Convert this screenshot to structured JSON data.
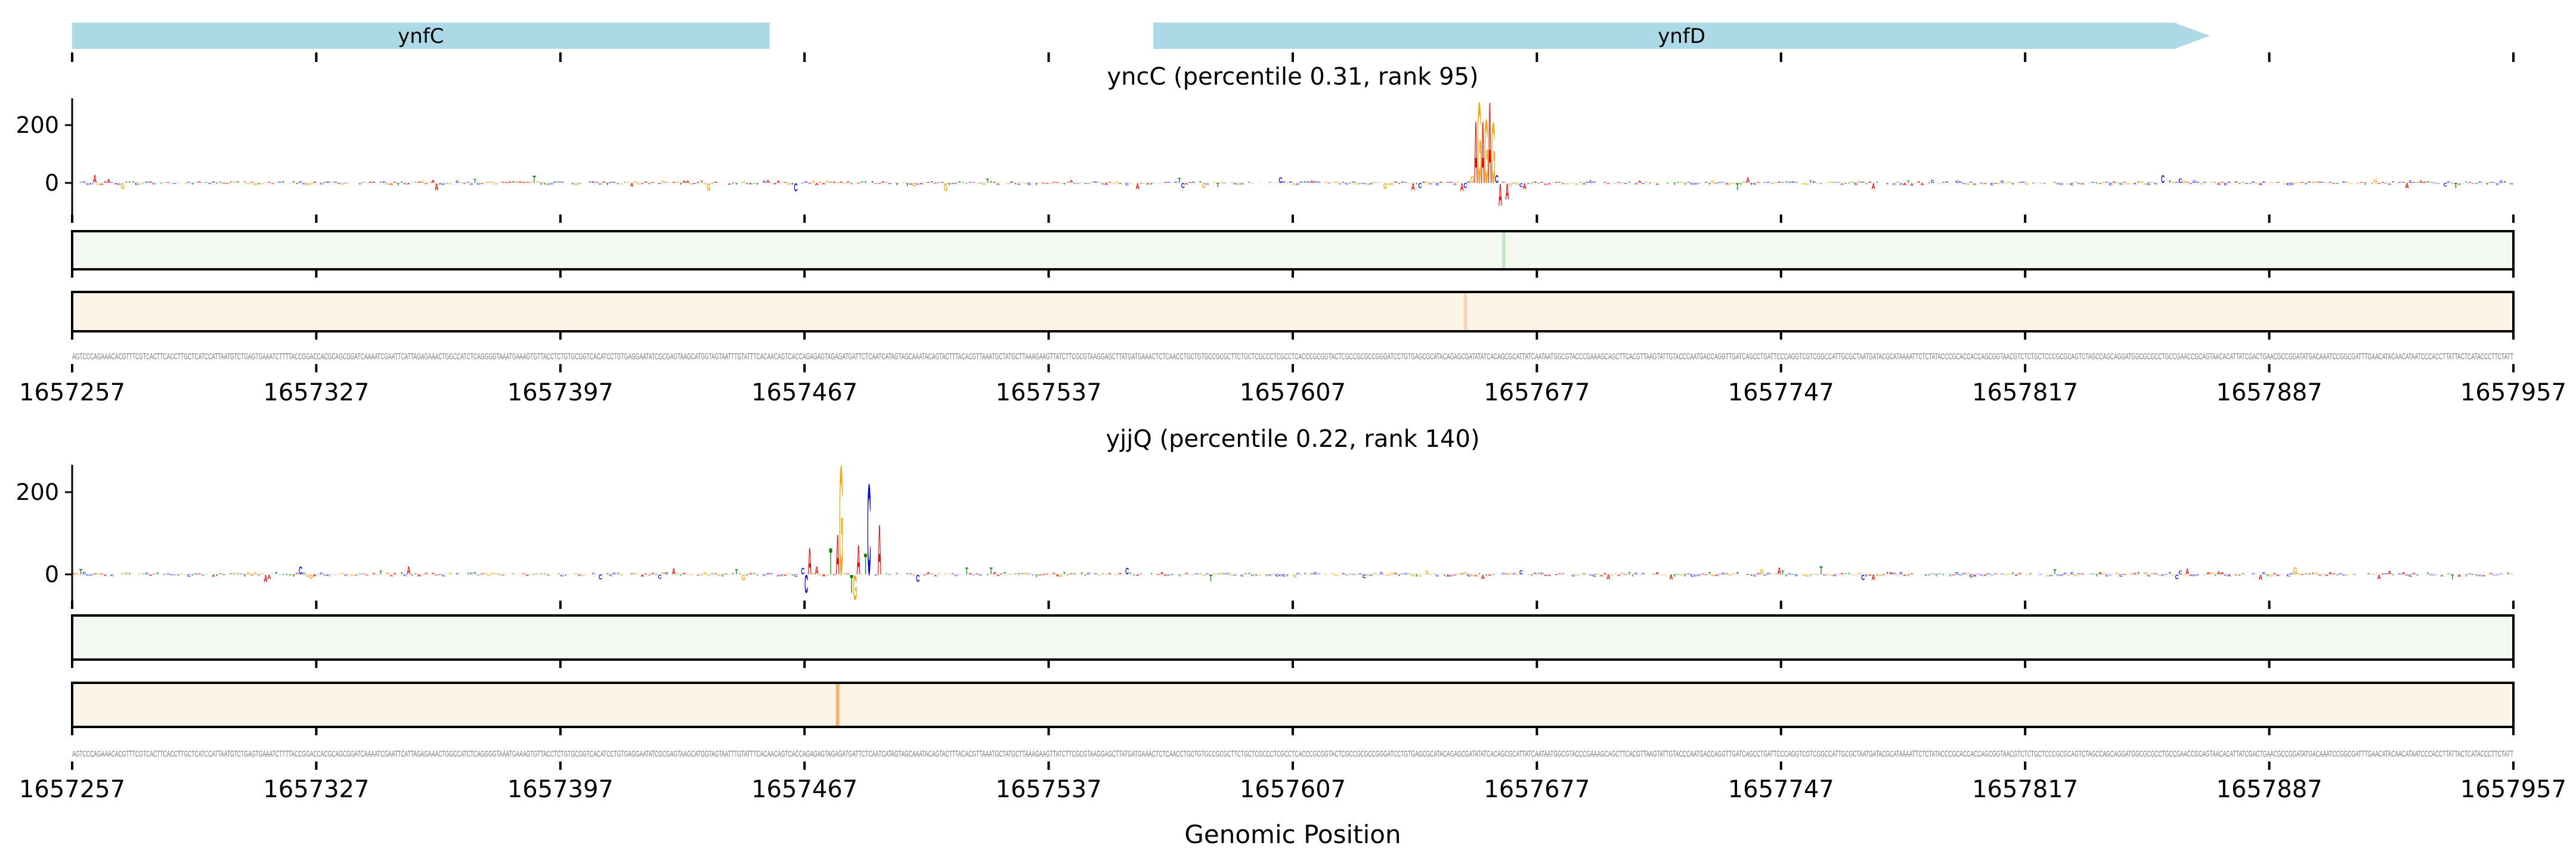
{
  "genes": [
    {
      "name": "ynfC",
      "start": 1657257,
      "end": 1657457,
      "arrow": false
    },
    {
      "name": "ynfD",
      "start": 1657567,
      "end": 1657870,
      "arrow": true
    }
  ],
  "colors": {
    "gene": "#add8e6",
    "A": "#ff0000",
    "C": "#0000ff",
    "G": "#ffa500",
    "T": "#008000",
    "green_track": "#f3f9f0",
    "green_mark": "#c6e5bf",
    "orange_track": "#fdf3e7",
    "orange_mark": "#f8d6b3",
    "orange_mark_strong": "#f4b36a"
  },
  "x_tick_labels": [
    "1657257",
    "1657327",
    "1657397",
    "1657467",
    "1657537",
    "1657607",
    "1657677",
    "1657747",
    "1657817",
    "1657887",
    "1657957"
  ],
  "xlabel": "Genomic Position",
  "sequence": "AGTCCCAGAAACACGTTTCGTCACTTCACCTTGCTCATCCATTAATGTCTGAGTGAAATCTTTTACCGGACCACGCAGCGGATCAAAATCGAATTCATTAGAGAAACTGGCCATCTCAGGGGTAAATGAAAGTGTTACCTCTGTGCGGTCACATCCTGTGAGGAATATCGCGAGTAAGCATGGTAGTAATTTGTATTTCACAACAGTCACCAGAGAGTAGAGATGATTCTCAATCATAGTAGCAAATACAGTACTTTACACGTTAAATGCTATGCTTAAAGAAGTTATCTTCGCGTAAGGAGCTTATGATGAAACTCTCAACCTGCTGTGCCGCGCTTCTGCTCGCCCTCGCCTCACCCGCGGTACTCGCCGCGCCGGGATCCTGTGAGCGCATACAGAGCGATATATCACAGCGCATTATCAATAATGGCGTACCCGAAAGCAGCTTCACGTTAAGTATTGTACCCAATGACCAGGTTGATCAGCCTGATTCCCAGGTCGTCGGCCATTGCGCTAATGATACGCATAAAATTCTCTATACCCGCACCACCAGCGGTAACGTCTCTGCTCCCGCGCAGTCTAGCCAGCAGGATGGCGCGCCTGCCGAACCGCAGTAACACATTATCGACTGAACGCCGGATATGACAAATCCGGCGATTTGAACATACAACATAATCCCACCTTATTACTCATACCCTTCTATT",
  "chart_data": [
    {
      "type": "sequence-logo",
      "title": "yncC (percentile 0.31, rank 95)",
      "xlim": [
        1657257,
        1657957
      ],
      "ylim": [
        -90,
        320
      ],
      "yticks": [
        "200",
        "0"
      ],
      "ytick_values": [
        200,
        0
      ],
      "peaks": [
        {
          "pos": 1657658,
          "base": "G",
          "value": 25
        },
        {
          "pos": 1657659,
          "base": "A",
          "value": 220
        },
        {
          "pos": 1657660,
          "base": "G",
          "value": 290
        },
        {
          "pos": 1657661,
          "base": "A",
          "value": 220
        },
        {
          "pos": 1657662,
          "base": "G",
          "value": 228
        },
        {
          "pos": 1657663,
          "base": "A",
          "value": 290
        },
        {
          "pos": 1657664,
          "base": "G",
          "value": 217
        },
        {
          "pos": 1657665,
          "base": "C",
          "value": 28
        },
        {
          "pos": 1657666,
          "base": "A",
          "value": -79
        },
        {
          "pos": 1657668,
          "base": "A",
          "value": -58
        },
        {
          "pos": 1657641,
          "base": "A",
          "value": -25
        },
        {
          "pos": 1657643,
          "base": "C",
          "value": -18
        },
        {
          "pos": 1657655,
          "base": "A",
          "value": -28
        },
        {
          "pos": 1657656,
          "base": "C",
          "value": -18
        },
        {
          "pos": 1657673,
          "base": "A",
          "value": -22
        },
        {
          "pos": 1657672,
          "base": "C",
          "value": -14
        }
      ],
      "green_track_highlights": [
        {
          "pos": 1657667,
          "strength": 1
        }
      ],
      "orange_track_highlights": [
        {
          "pos": 1657656,
          "strength": 1
        }
      ]
    },
    {
      "type": "sequence-logo",
      "title": "yjjQ (percentile 0.22, rank 140)",
      "xlim": [
        1657257,
        1657957
      ],
      "ylim": [
        -80,
        290
      ],
      "yticks": [
        "200",
        "0"
      ],
      "ytick_values": [
        200,
        0
      ],
      "peaks": [
        {
          "pos": 1657466,
          "base": "C",
          "value": 16
        },
        {
          "pos": 1657467,
          "base": "C",
          "value": -45
        },
        {
          "pos": 1657468,
          "base": "A",
          "value": 67
        },
        {
          "pos": 1657470,
          "base": "A",
          "value": 20
        },
        {
          "pos": 1657474,
          "base": "T",
          "value": 66
        },
        {
          "pos": 1657476,
          "base": "A",
          "value": 100
        },
        {
          "pos": 1657477,
          "base": "G",
          "value": 274
        },
        {
          "pos": 1657480,
          "base": "T",
          "value": -45
        },
        {
          "pos": 1657481,
          "base": "G",
          "value": -62
        },
        {
          "pos": 1657482,
          "base": "A",
          "value": 74
        },
        {
          "pos": 1657484,
          "base": "T",
          "value": 52
        },
        {
          "pos": 1657485,
          "base": "C",
          "value": 228
        },
        {
          "pos": 1657488,
          "base": "A",
          "value": 126
        },
        {
          "pos": 1657499,
          "base": "C",
          "value": -18
        }
      ],
      "green_track_highlights": [],
      "orange_track_highlights": [
        {
          "pos": 1657476,
          "strength": 2
        }
      ]
    }
  ]
}
